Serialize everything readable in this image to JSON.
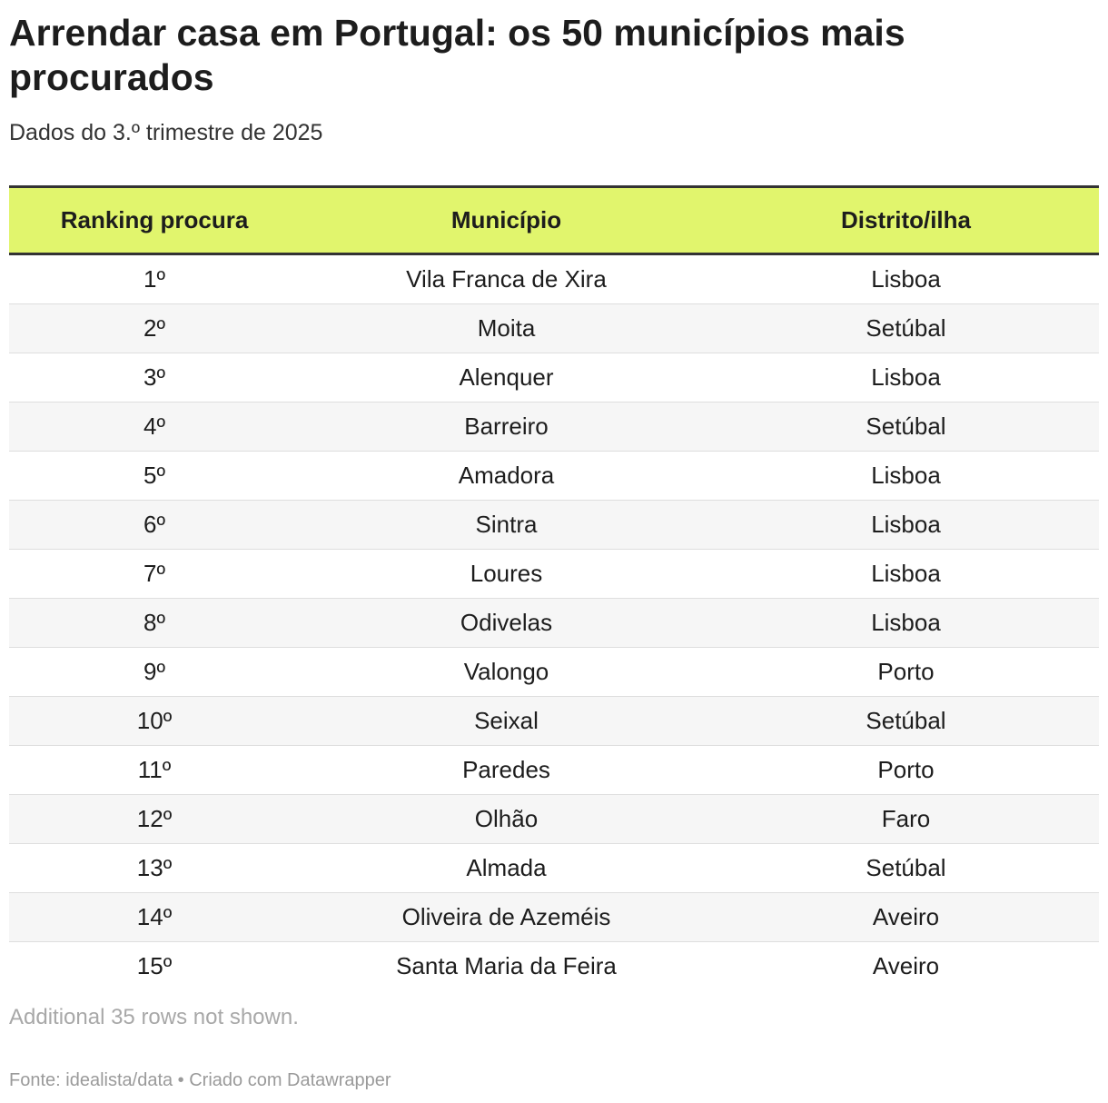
{
  "title": "Arrendar casa em Portugal: os 50 municípios mais procurados",
  "subtitle": "Dados do 3.º trimestre de 2025",
  "table": {
    "headers": [
      "Ranking procura",
      "Município",
      "Distrito/ilha"
    ],
    "rows": [
      [
        "1º",
        "Vila Franca de Xira",
        "Lisboa"
      ],
      [
        "2º",
        "Moita",
        "Setúbal"
      ],
      [
        "3º",
        "Alenquer",
        "Lisboa"
      ],
      [
        "4º",
        "Barreiro",
        "Setúbal"
      ],
      [
        "5º",
        "Amadora",
        "Lisboa"
      ],
      [
        "6º",
        "Sintra",
        "Lisboa"
      ],
      [
        "7º",
        "Loures",
        "Lisboa"
      ],
      [
        "8º",
        "Odivelas",
        "Lisboa"
      ],
      [
        "9º",
        "Valongo",
        "Porto"
      ],
      [
        "10º",
        "Seixal",
        "Setúbal"
      ],
      [
        "11º",
        "Paredes",
        "Porto"
      ],
      [
        "12º",
        "Olhão",
        "Faro"
      ],
      [
        "13º",
        "Almada",
        "Setúbal"
      ],
      [
        "14º",
        "Oliveira de Azeméis",
        "Aveiro"
      ],
      [
        "15º",
        "Santa Maria da Feira",
        "Aveiro"
      ]
    ]
  },
  "note": "Additional 35 rows not shown.",
  "footer": "Fonte: idealista/data • Criado com Datawrapper",
  "colors": {
    "header_background": "#e1f56d",
    "rule": "#333333",
    "alt_row": "#f6f6f6"
  }
}
